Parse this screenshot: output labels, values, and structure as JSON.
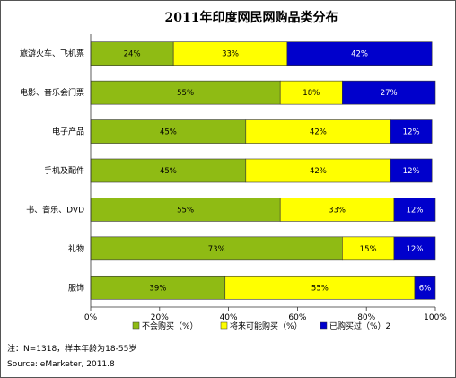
{
  "chart_data": {
    "type": "bar",
    "orientation": "horizontal",
    "stacked": true,
    "title": "2011年印度网民网购品类分布",
    "categories": [
      "旅游火车、飞机票",
      "电影、音乐会门票",
      "电子产品",
      "手机及配件",
      "书、音乐、DVD",
      "礼物",
      "服饰"
    ],
    "series": [
      {
        "name": "不会购买（%）",
        "color": "#8fbb14",
        "values": [
          24,
          55,
          45,
          45,
          55,
          73,
          39
        ]
      },
      {
        "name": "将来可能购买（%）",
        "color": "#ffff00",
        "values": [
          33,
          18,
          42,
          42,
          33,
          15,
          55
        ]
      },
      {
        "name": "已购买过（%）2",
        "color": "#0000cc",
        "values": [
          42,
          27,
          12,
          12,
          12,
          12,
          6
        ]
      }
    ],
    "xticks": [
      "0%",
      "20%",
      "40%",
      "60%",
      "80%",
      "100%"
    ],
    "xlim": [
      0,
      100
    ],
    "legend": "bottom"
  },
  "footer": {
    "note": "注：N=1318，样本年龄为18-55岁",
    "source": "Source: eMarketer, 2011.8"
  }
}
